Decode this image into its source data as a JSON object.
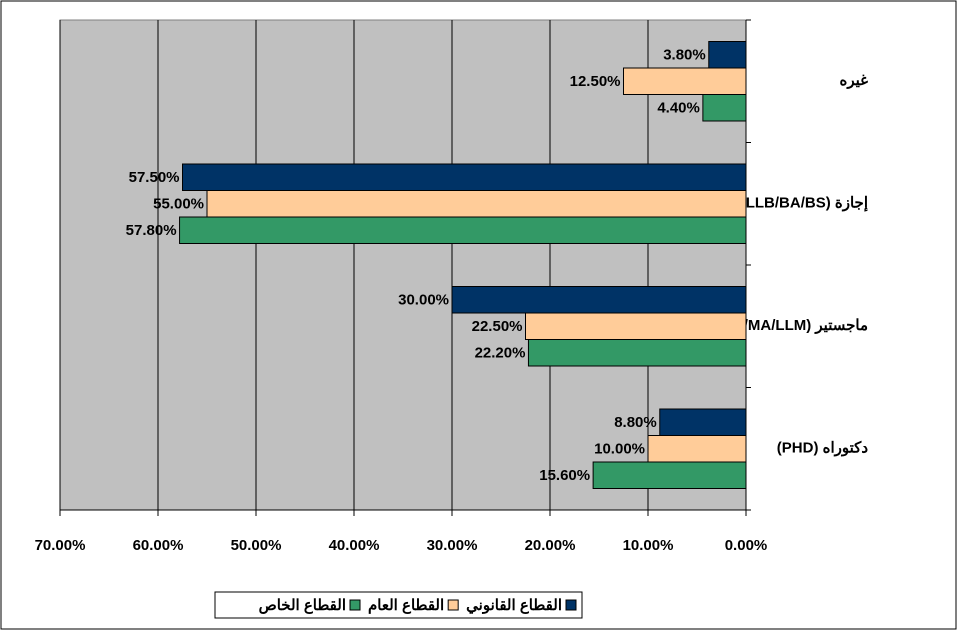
{
  "chart_data": {
    "type": "bar",
    "orientation": "horizontal",
    "x_reversed": true,
    "categories": [
      "غيره",
      "إجازة (LLB/BA/BS)",
      "ماجستير (MS/MA/LLM)",
      "دكتوراه (PHD)"
    ],
    "series": [
      {
        "name": "القطاع القانوني",
        "color": "#003366",
        "values": [
          3.8,
          57.5,
          30,
          8.8
        ],
        "value_labels": [
          "3.80%",
          "57.50%",
          "30.00%",
          "8.80%"
        ]
      },
      {
        "name": "القطاع العام",
        "color": "#FFCC99",
        "values": [
          12.5,
          55,
          22.5,
          10
        ],
        "value_labels": [
          "12.50%",
          "55.00%",
          "22.50%",
          "10.00%"
        ]
      },
      {
        "name": "القطاع الخاص",
        "color": "#339966",
        "values": [
          4.4,
          57.8,
          22.2,
          15.6
        ],
        "value_labels": [
          "4.40%",
          "57.80%",
          "22.20%",
          "15.60%"
        ]
      }
    ],
    "xlim": [
      0,
      70
    ],
    "xticks": [
      {
        "value": 0,
        "label": "0.00%"
      },
      {
        "value": 10,
        "label": "10.00%"
      },
      {
        "value": 20,
        "label": "20.00%"
      },
      {
        "value": 30,
        "label": "30.00%"
      },
      {
        "value": 40,
        "label": "40.00%"
      },
      {
        "value": 50,
        "label": "50.00%"
      },
      {
        "value": 60,
        "label": "60.00%"
      },
      {
        "value": 70,
        "label": "70.00%"
      }
    ],
    "grid": true,
    "plot_background": "#C0C0C0",
    "legend": "bottom"
  }
}
